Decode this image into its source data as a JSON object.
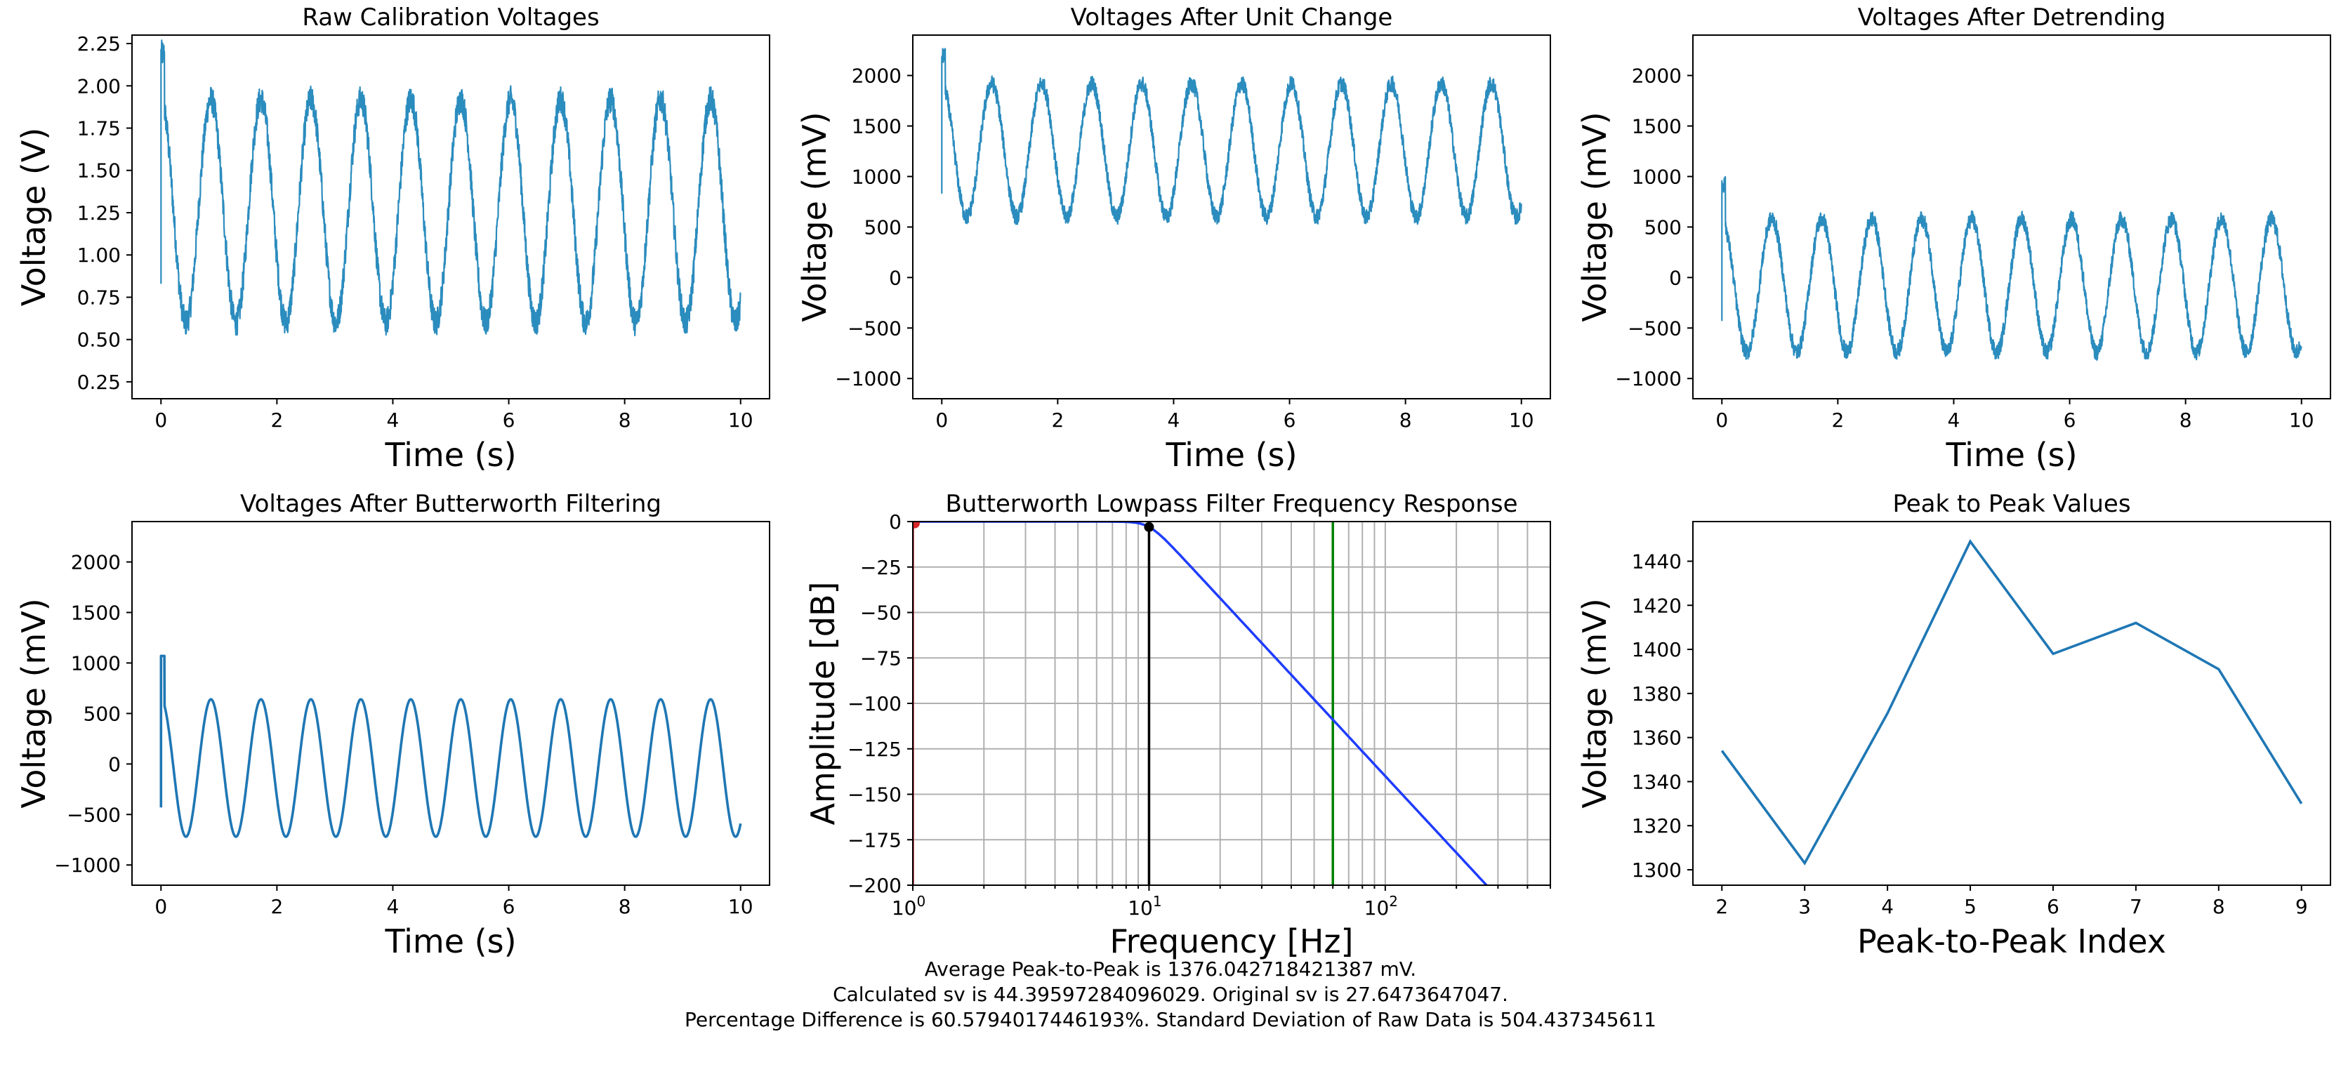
{
  "chart_data": [
    {
      "type": "line",
      "title": "Raw Calibration Voltages",
      "xlabel": "Time (s)",
      "ylabel": "Voltage (V)",
      "xlim": [
        -0.5,
        10.5
      ],
      "ylim": [
        0.15,
        2.3
      ],
      "xticks": [
        0,
        2,
        4,
        6,
        8,
        10
      ],
      "yticks": [
        0.25,
        0.5,
        0.75,
        1.0,
        1.25,
        1.5,
        1.75,
        2.0,
        2.25
      ],
      "ytick_labels": [
        "0.25",
        "0.50",
        "0.75",
        "1.00",
        "1.25",
        "1.50",
        "1.75",
        "2.00",
        "2.25"
      ],
      "color": "#2b8cbe",
      "signal": {
        "dc": 1.26,
        "amp": 0.66,
        "freq": 1.16,
        "noise": 0.08,
        "peak": 2.19,
        "start": 0.83
      },
      "grid": false
    },
    {
      "type": "line",
      "title": "Voltages After Unit Change",
      "xlabel": "Time (s)",
      "ylabel": "Voltage (mV)",
      "xlim": [
        -0.5,
        10.5
      ],
      "ylim": [
        -1200,
        2400
      ],
      "xticks": [
        0,
        2,
        4,
        6,
        8,
        10
      ],
      "yticks": [
        -1000,
        -500,
        0,
        500,
        1000,
        1500,
        2000
      ],
      "ytick_labels": [
        "−1000",
        "−500",
        "0",
        "500",
        "1000",
        "1500",
        "2000"
      ],
      "color": "#2b8cbe",
      "signal": {
        "dc": 1260,
        "amp": 660,
        "freq": 1.16,
        "noise": 80,
        "peak": 2190,
        "start": 830
      },
      "grid": false
    },
    {
      "type": "line",
      "title": "Voltages After Detrending",
      "xlabel": "Time (s)",
      "ylabel": "Voltage (mV)",
      "xlim": [
        -0.5,
        10.5
      ],
      "ylim": [
        -1200,
        2400
      ],
      "xticks": [
        0,
        2,
        4,
        6,
        8,
        10
      ],
      "yticks": [
        -1000,
        -500,
        0,
        500,
        1000,
        1500,
        2000
      ],
      "ytick_labels": [
        "−1000",
        "−500",
        "0",
        "500",
        "1000",
        "1500",
        "2000"
      ],
      "color": "#2b8cbe",
      "signal": {
        "dc": -80,
        "amp": 660,
        "freq": 1.16,
        "noise": 80,
        "peak": 920,
        "start": -430
      },
      "grid": false
    },
    {
      "type": "line",
      "title": "Voltages After Butterworth Filtering",
      "xlabel": "Time (s)",
      "ylabel": "Voltage (mV)",
      "xlim": [
        -0.5,
        10.5
      ],
      "ylim": [
        -1200,
        2400
      ],
      "xticks": [
        0,
        2,
        4,
        6,
        8,
        10
      ],
      "yticks": [
        -1000,
        -500,
        0,
        500,
        1000,
        1500,
        2000
      ],
      "ytick_labels": [
        "−1000",
        "−500",
        "0",
        "500",
        "1000",
        "1500",
        "2000"
      ],
      "color": "#1f77b4",
      "signal": {
        "dc": -40,
        "amp": 680,
        "freq": 1.16,
        "noise": 0,
        "peak": 1070,
        "start": -430
      },
      "grid": false
    },
    {
      "type": "line",
      "title": "Butterworth Lowpass Filter Frequency Response",
      "xlabel": "Frequency [Hz]",
      "ylabel": "Amplitude [dB]",
      "xscale": "log",
      "xlim": [
        1,
        500
      ],
      "ylim": [
        -200,
        0
      ],
      "xtick_major": [
        {
          "value": 1,
          "base": "10",
          "exp": "0"
        },
        {
          "value": 10,
          "base": "10",
          "exp": "1"
        },
        {
          "value": 100,
          "base": "10",
          "exp": "2"
        }
      ],
      "yticks": [
        0,
        -25,
        -50,
        -75,
        -100,
        -125,
        -150,
        -175,
        -200
      ],
      "ytick_labels": [
        "0",
        "−25",
        "−50",
        "−75",
        "−100",
        "−125",
        "−150",
        "−175",
        "−200"
      ],
      "response": {
        "cutoff": 10,
        "order": 7
      },
      "vlines": [
        {
          "x": 1.0,
          "color": "#d62728"
        },
        {
          "x": 10.0,
          "color": "#000000"
        },
        {
          "x": 60.0,
          "color": "#008000"
        }
      ],
      "points": [
        {
          "x": 1.02,
          "y": -1,
          "color": "#d62728"
        },
        {
          "x": 10.0,
          "y": -3,
          "color": "#000000"
        }
      ],
      "color": "#1f3cff",
      "grid": true
    },
    {
      "type": "line",
      "title": "Peak to Peak Values",
      "xlabel": "Peak-to-Peak Index",
      "ylabel": "Voltage (mV)",
      "x": [
        2,
        3,
        4,
        5,
        6,
        7,
        8,
        9
      ],
      "y": [
        1354,
        1303,
        1371,
        1449,
        1398,
        1412,
        1391,
        1330
      ],
      "xlim": [
        1.65,
        9.35
      ],
      "ylim": [
        1293,
        1458
      ],
      "xticks": [
        2,
        3,
        4,
        5,
        6,
        7,
        8,
        9
      ],
      "yticks": [
        1300,
        1320,
        1340,
        1360,
        1380,
        1400,
        1420,
        1440
      ],
      "color": "#1f77b4",
      "grid": false
    }
  ],
  "footer": {
    "line1": "Average Peak-to-Peak is 1376.042718421387 mV.",
    "line2": "Calculated sv is 44.39597284096029. Original sv is 27.6473647047.",
    "line3": "Percentage Difference is 60.5794017446193%. Standard Deviation of Raw Data is 504.437345611"
  }
}
